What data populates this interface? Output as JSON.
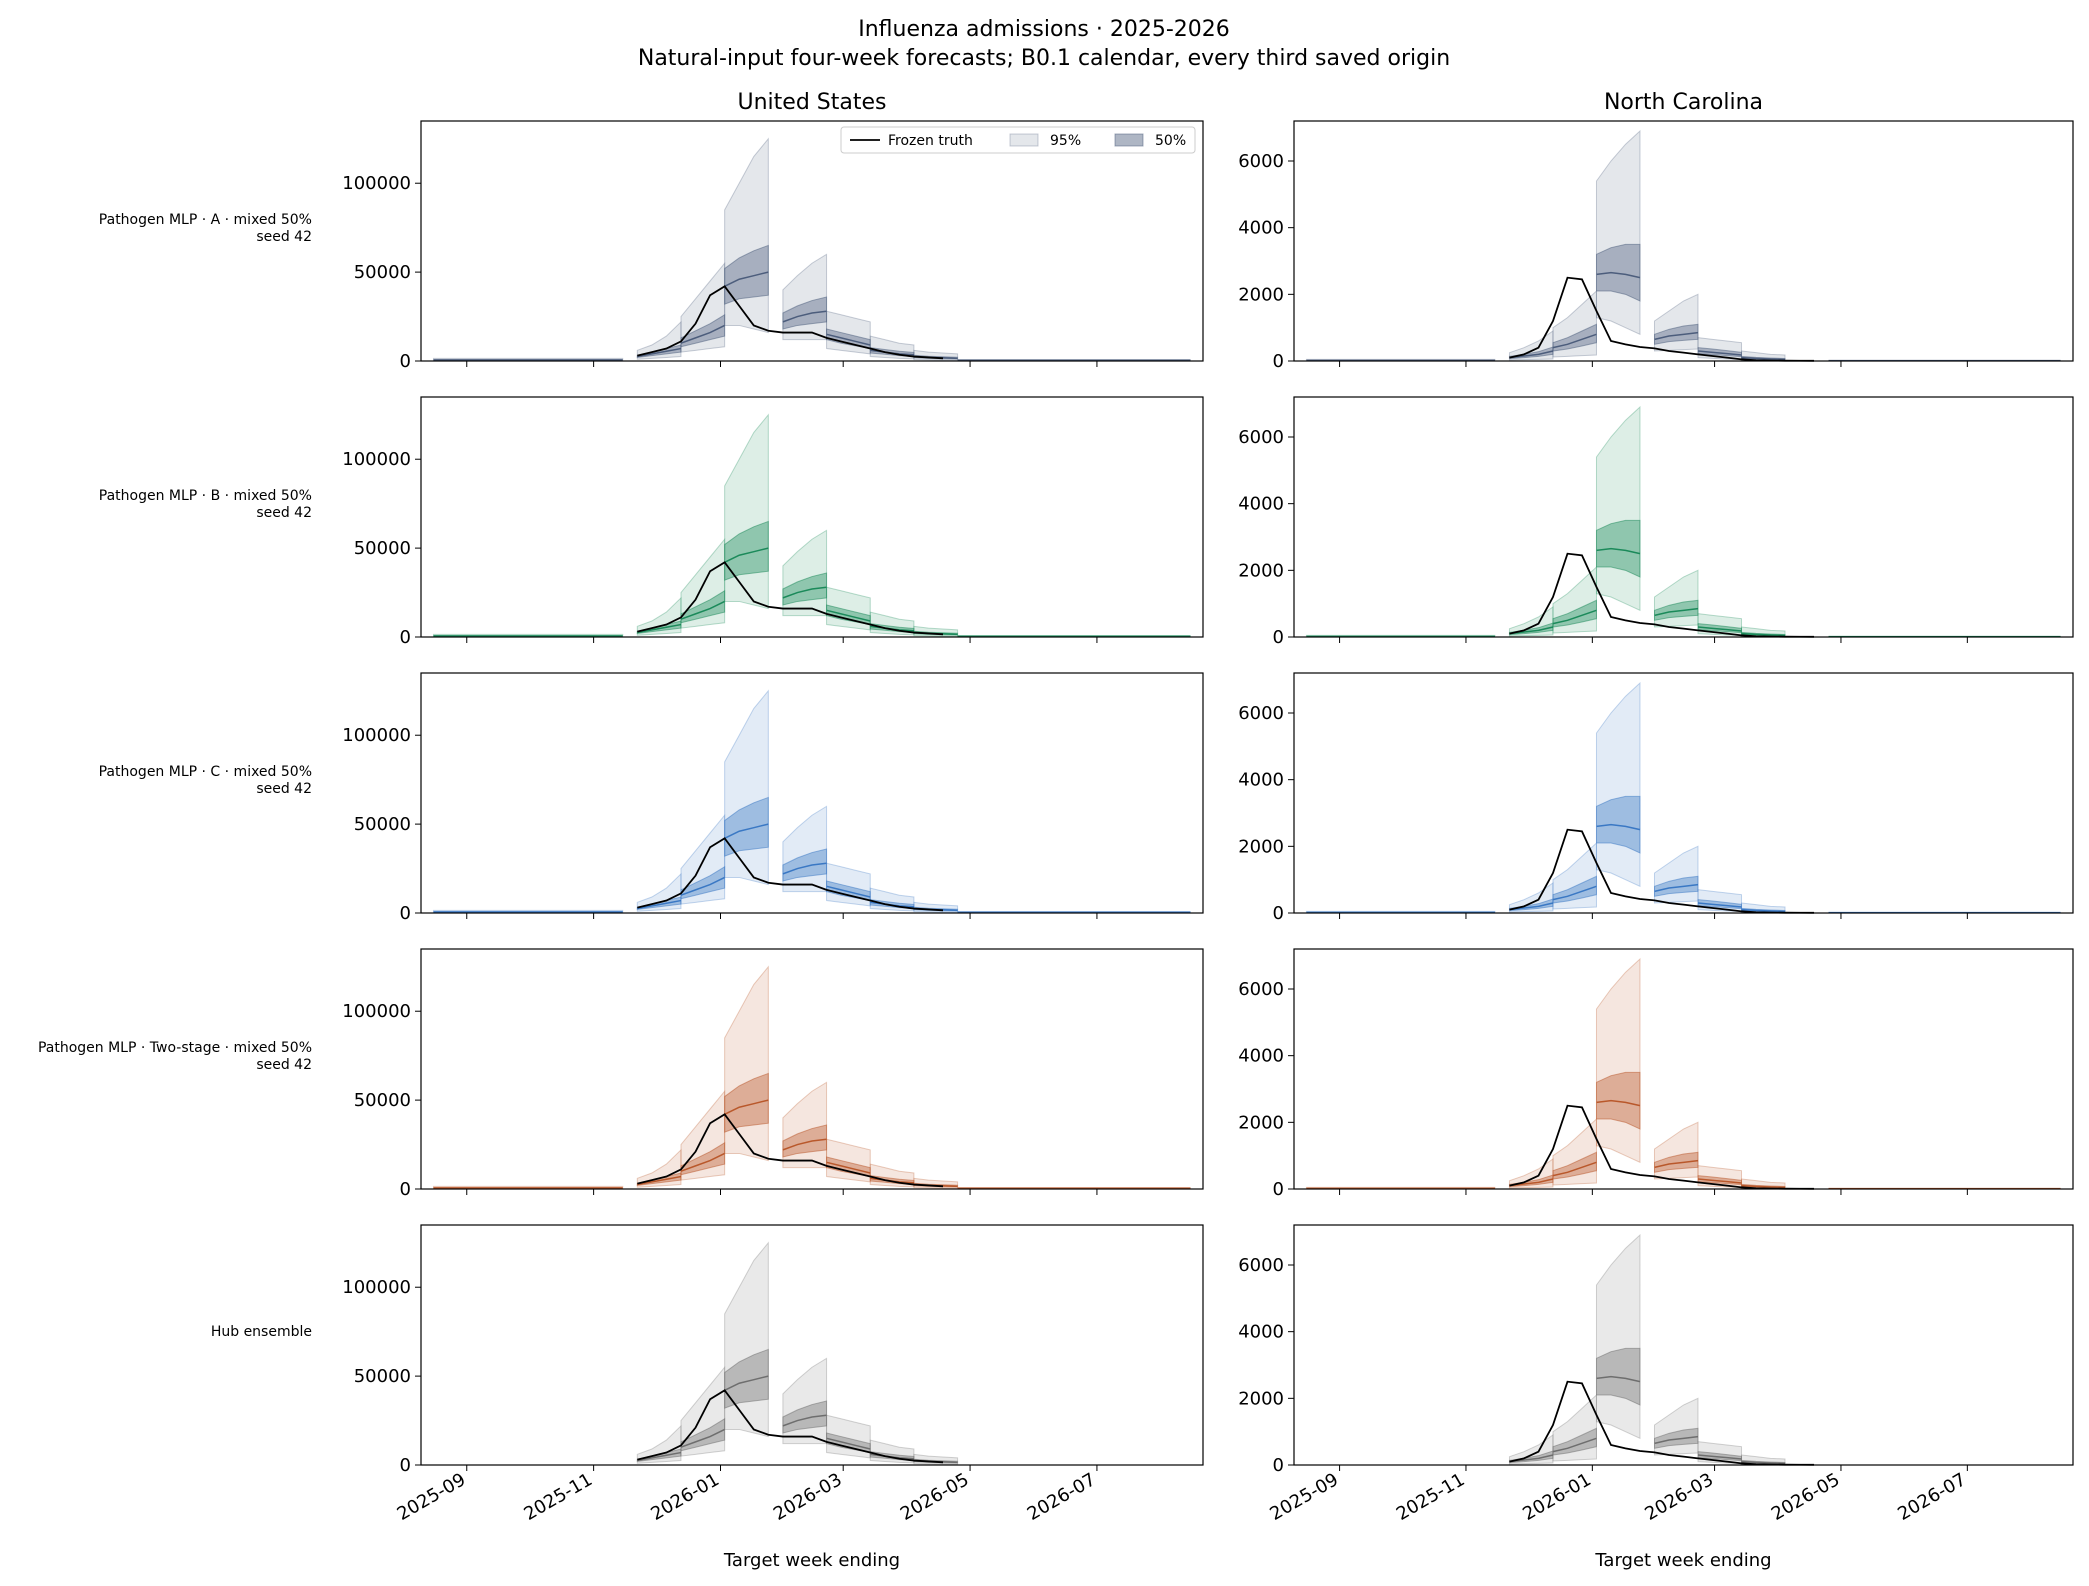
{
  "figure": {
    "title": "Influenza admissions · 2025-2026",
    "subtitle": "Natural-input four-week forecasts; B0.1 calendar, every third saved origin",
    "columns": [
      "United States",
      "North Carolina"
    ],
    "xlabel": "Target week ending",
    "x_ticks": [
      "2025-09",
      "2025-11",
      "2026-01",
      "2026-03",
      "2026-05",
      "2026-07"
    ],
    "legend": {
      "truth": "Frozen truth",
      "pi95": "95%",
      "pi50": "50%",
      "placement": "upper-right of first panel"
    }
  },
  "chart_data": {
    "type": "line",
    "x_range": [
      "2025-08-10",
      "2026-08-21"
    ],
    "truth": {
      "dates": [
        "2025-11-22",
        "2025-11-29",
        "2025-12-06",
        "2025-12-13",
        "2025-12-20",
        "2025-12-27",
        "2026-01-03",
        "2026-01-10",
        "2026-01-17",
        "2026-01-24",
        "2026-01-31",
        "2026-02-07",
        "2026-02-14",
        "2026-02-21",
        "2026-02-28",
        "2026-03-07",
        "2026-03-14",
        "2026-03-21",
        "2026-03-28",
        "2026-04-04",
        "2026-04-11",
        "2026-04-18"
      ],
      "United States": [
        3000,
        5000,
        7000,
        11000,
        21000,
        37000,
        42000,
        31000,
        20000,
        17000,
        16000,
        16000,
        16000,
        13000,
        11000,
        9000,
        7000,
        5000,
        3500,
        2500,
        2000,
        1500
      ],
      "North Carolina": [
        100,
        200,
        400,
        1200,
        2500,
        2450,
        1500,
        600,
        500,
        420,
        380,
        300,
        250,
        200,
        150,
        100,
        50,
        20,
        15,
        10,
        8,
        5
      ]
    },
    "panels": [
      {
        "row_label": "Pathogen MLP · A · mixed 50%\nseed 42",
        "color": "#4c5d7c",
        "ylim": {
          "United States": [
            0,
            135000
          ],
          "North Carolina": [
            0,
            7200
          ]
        },
        "yticks": {
          "United States": [
            0,
            50000,
            100000
          ],
          "North Carolina": [
            0,
            2000,
            4000,
            6000
          ]
        },
        "forecast_start": "2025-08-16"
      },
      {
        "row_label": "Pathogen MLP · B · mixed 50%\nseed 42",
        "color": "#1b8a5a",
        "ylim": {
          "United States": [
            0,
            135000
          ],
          "North Carolina": [
            0,
            7200
          ]
        },
        "yticks": {
          "United States": [
            0,
            50000,
            100000
          ],
          "North Carolina": [
            0,
            2000,
            4000,
            6000
          ]
        },
        "forecast_start": "2025-08-16"
      },
      {
        "row_label": "Pathogen MLP · C · mixed 50%\nseed 42",
        "color": "#3a78c4",
        "ylim": {
          "United States": [
            0,
            135000
          ],
          "North Carolina": [
            0,
            7200
          ]
        },
        "yticks": {
          "United States": [
            0,
            50000,
            100000
          ],
          "North Carolina": [
            0,
            2000,
            4000,
            6000
          ]
        },
        "forecast_start": "2025-08-16"
      },
      {
        "row_label": "Pathogen MLP · Two-stage · mixed 50%\nseed 42",
        "color": "#b9582b",
        "ylim": {
          "United States": [
            0,
            135000
          ],
          "North Carolina": [
            0,
            7200
          ]
        },
        "yticks": {
          "United States": [
            0,
            50000,
            100000
          ],
          "North Carolina": [
            0,
            2000,
            4000,
            6000
          ]
        },
        "forecast_start": "2025-08-16"
      },
      {
        "row_label": "Hub ensemble",
        "color": "#6e6e6e",
        "ylim": {
          "United States": [
            0,
            135000
          ],
          "North Carolina": [
            0,
            7200
          ]
        },
        "yticks": {
          "United States": [
            0,
            50000,
            100000
          ],
          "North Carolina": [
            0,
            2000,
            4000,
            6000
          ]
        },
        "forecast_start": "2025-11-22"
      }
    ],
    "forecasts": {
      "United States": [
        {
          "origin": "2025-11-22",
          "median": [
            2500,
            4000,
            5500,
            7000
          ],
          "q25": [
            2000,
            3000,
            4000,
            5000
          ],
          "q75": [
            3000,
            5000,
            7000,
            9000
          ],
          "q025": [
            1000,
            1500,
            2000,
            2500
          ],
          "q975": [
            6000,
            9000,
            14000,
            22000
          ]
        },
        {
          "origin": "2025-12-13",
          "median": [
            10000,
            13000,
            16000,
            20000
          ],
          "q25": [
            8000,
            10000,
            12000,
            14000
          ],
          "q75": [
            13000,
            17000,
            21000,
            26000
          ],
          "q025": [
            5000,
            6000,
            7000,
            8000
          ],
          "q975": [
            25000,
            35000,
            45000,
            55000
          ]
        },
        {
          "origin": "2026-01-03",
          "median": [
            42000,
            46000,
            48000,
            50000
          ],
          "q25": [
            32000,
            35000,
            36000,
            37000
          ],
          "q75": [
            52000,
            58000,
            62000,
            65000
          ],
          "q025": [
            20000,
            20000,
            18000,
            16000
          ],
          "q975": [
            85000,
            100000,
            115000,
            125000
          ]
        },
        {
          "origin": "2026-01-31",
          "median": [
            22000,
            25000,
            27000,
            28000
          ],
          "q25": [
            18000,
            20000,
            21000,
            22000
          ],
          "q75": [
            27000,
            31000,
            34000,
            36000
          ],
          "q025": [
            12000,
            12000,
            12000,
            12000
          ],
          "q975": [
            40000,
            48000,
            55000,
            60000
          ]
        },
        {
          "origin": "2026-02-21",
          "median": [
            15000,
            13000,
            11000,
            9000
          ],
          "q25": [
            12000,
            10000,
            8500,
            7000
          ],
          "q75": [
            18000,
            16000,
            14000,
            12000
          ],
          "q025": [
            7000,
            6000,
            5000,
            4000
          ],
          "q975": [
            28000,
            26000,
            24000,
            22000
          ]
        },
        {
          "origin": "2026-03-14",
          "median": [
            6000,
            5000,
            4000,
            3500
          ],
          "q25": [
            4500,
            3800,
            3000,
            2500
          ],
          "q75": [
            7500,
            6500,
            5500,
            4800
          ],
          "q025": [
            2500,
            2000,
            1500,
            1200
          ],
          "q975": [
            14000,
            12000,
            10000,
            9000
          ]
        },
        {
          "origin": "2026-04-04",
          "median": [
            2500,
            2000,
            1800,
            1500
          ],
          "q25": [
            1800,
            1500,
            1300,
            1100
          ],
          "q75": [
            3200,
            2700,
            2400,
            2100
          ],
          "q025": [
            800,
            600,
            500,
            400
          ],
          "q975": [
            6000,
            5000,
            4500,
            4000
          ]
        }
      ],
      "North Carolina": [
        {
          "origin": "2025-11-22",
          "median": [
            100,
            150,
            200,
            300
          ],
          "q25": [
            70,
            100,
            140,
            200
          ],
          "q75": [
            140,
            200,
            280,
            420
          ],
          "q025": [
            30,
            40,
            50,
            60
          ],
          "q975": [
            250,
            400,
            600,
            900
          ]
        },
        {
          "origin": "2025-12-13",
          "median": [
            400,
            500,
            650,
            800
          ],
          "q25": [
            300,
            360,
            450,
            550
          ],
          "q75": [
            550,
            700,
            900,
            1100
          ],
          "q025": [
            120,
            140,
            160,
            180
          ],
          "q975": [
            1000,
            1300,
            1700,
            2100
          ]
        },
        {
          "origin": "2026-01-03",
          "median": [
            2600,
            2650,
            2600,
            2500
          ],
          "q25": [
            2100,
            2100,
            2000,
            1800
          ],
          "q75": [
            3200,
            3400,
            3500,
            3500
          ],
          "q025": [
            1300,
            1200,
            1000,
            800
          ],
          "q975": [
            5400,
            6000,
            6500,
            6900
          ]
        },
        {
          "origin": "2026-01-31",
          "median": [
            650,
            750,
            800,
            850
          ],
          "q25": [
            500,
            580,
            620,
            650
          ],
          "q75": [
            800,
            950,
            1050,
            1100
          ],
          "q025": [
            300,
            320,
            340,
            360
          ],
          "q975": [
            1200,
            1500,
            1800,
            2000
          ]
        },
        {
          "origin": "2026-02-21",
          "median": [
            300,
            260,
            220,
            180
          ],
          "q25": [
            220,
            190,
            160,
            130
          ],
          "q75": [
            400,
            360,
            310,
            260
          ],
          "q025": [
            100,
            80,
            60,
            50
          ],
          "q975": [
            700,
            650,
            600,
            550
          ]
        },
        {
          "origin": "2026-03-14",
          "median": [
            100,
            80,
            60,
            50
          ],
          "q25": [
            70,
            55,
            45,
            35
          ],
          "q75": [
            140,
            110,
            90,
            75
          ],
          "q025": [
            30,
            25,
            20,
            15
          ],
          "q975": [
            300,
            250,
            200,
            180
          ]
        }
      ]
    }
  }
}
